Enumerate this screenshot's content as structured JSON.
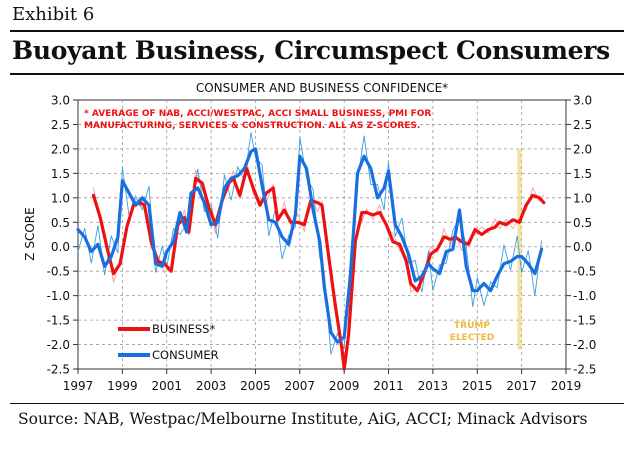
{
  "exhibit_label": "Exhibit 6",
  "headline": "Buoyant Business, Circumspect Consumers",
  "source": "Source: NAB, Westpac/Melbourne Institute, AiG, ACCI; Minack Advisors",
  "chart_data": {
    "type": "line",
    "title": "CONSUMER AND BUSINESS CONFIDENCE*",
    "note_lines": [
      "* AVERAGE OF NAB, ACCI/WESTPAC, ACCI SMALL BUSINESS, PMI FOR",
      "MANUFACTURING, SERVICES & CONSTRUCTION.  ALL AS Z-SCORES."
    ],
    "ylabel": "Z SCORE",
    "xlabel": "",
    "ylim": [
      -2.5,
      3.0
    ],
    "xlim": [
      1997,
      2019
    ],
    "y_ticks": [
      "3.0",
      "2.5",
      "2.0",
      "1.5",
      "1.0",
      "0.5",
      "0.0",
      "-0.5",
      "-1.0",
      "-1.5",
      "-2.0",
      "-2.5"
    ],
    "x_ticks": [
      "1997",
      "1999",
      "2001",
      "2003",
      "2005",
      "2007",
      "2009",
      "2011",
      "2013",
      "2015",
      "2017",
      "2019"
    ],
    "grid": true,
    "colors": {
      "business": "#ee1111",
      "business_raw": "#f4a0a0",
      "consumer": "#1a6fe0",
      "consumer_raw": "#3aa0e0",
      "annotation_band": "#f6dd8a",
      "annotation_text": "#f0b93a"
    },
    "series": [
      {
        "name": "BUSINESS*",
        "x": [
          1997.7,
          1998.0,
          1998.3,
          1998.6,
          1998.9,
          1999.2,
          1999.5,
          1999.8,
          2000.0,
          2000.3,
          2000.6,
          2000.9,
          2001.2,
          2001.5,
          2001.8,
          2002.0,
          2002.3,
          2002.6,
          2002.9,
          2003.2,
          2003.5,
          2003.8,
          2004.0,
          2004.3,
          2004.6,
          2004.9,
          2005.2,
          2005.5,
          2005.8,
          2006.0,
          2006.3,
          2006.6,
          2006.9,
          2007.2,
          2007.5,
          2007.8,
          2008.0,
          2008.3,
          2008.6,
          2008.9,
          2009.0,
          2009.2,
          2009.5,
          2009.8,
          2010.0,
          2010.3,
          2010.6,
          2010.9,
          2011.2,
          2011.5,
          2011.8,
          2012.0,
          2012.3,
          2012.6,
          2012.9,
          2013.2,
          2013.5,
          2013.8,
          2014.0,
          2014.3,
          2014.6,
          2014.9,
          2015.2,
          2015.5,
          2015.8,
          2016.0,
          2016.3,
          2016.6,
          2016.9,
          2017.2,
          2017.5,
          2017.8,
          2018.0
        ],
        "values": [
          1.05,
          0.6,
          0.0,
          -0.55,
          -0.35,
          0.4,
          0.85,
          0.9,
          0.85,
          0.1,
          -0.3,
          -0.35,
          -0.5,
          0.45,
          0.6,
          0.3,
          1.4,
          1.3,
          0.8,
          0.45,
          0.95,
          1.3,
          1.4,
          1.05,
          1.6,
          1.2,
          0.85,
          1.1,
          1.2,
          0.55,
          0.75,
          0.5,
          0.5,
          0.45,
          0.95,
          0.9,
          0.85,
          -0.2,
          -1.2,
          -2.1,
          -2.5,
          -1.8,
          0.1,
          0.7,
          0.7,
          0.65,
          0.7,
          0.45,
          0.1,
          0.05,
          -0.3,
          -0.75,
          -0.9,
          -0.55,
          -0.15,
          -0.05,
          0.2,
          0.15,
          0.2,
          0.1,
          0.05,
          0.35,
          0.25,
          0.35,
          0.4,
          0.5,
          0.45,
          0.55,
          0.5,
          0.85,
          1.05,
          1.0,
          0.9
        ]
      },
      {
        "name": "CONSUMER",
        "x": [
          1997.0,
          1997.3,
          1997.6,
          1997.9,
          1998.2,
          1998.5,
          1998.8,
          1999.0,
          1999.3,
          1999.6,
          1999.9,
          2000.2,
          2000.5,
          2000.8,
          2001.0,
          2001.3,
          2001.6,
          2001.9,
          2002.1,
          2002.4,
          2002.7,
          2003.0,
          2003.3,
          2003.6,
          2003.9,
          2004.2,
          2004.5,
          2004.8,
          2005.0,
          2005.3,
          2005.6,
          2005.9,
          2006.2,
          2006.5,
          2006.8,
          2007.0,
          2007.3,
          2007.6,
          2007.9,
          2008.1,
          2008.4,
          2008.7,
          2009.0,
          2009.3,
          2009.6,
          2009.9,
          2010.2,
          2010.5,
          2010.8,
          2011.0,
          2011.3,
          2011.6,
          2011.9,
          2012.2,
          2012.5,
          2012.8,
          2013.0,
          2013.3,
          2013.6,
          2013.9,
          2014.2,
          2014.5,
          2014.8,
          2015.0,
          2015.3,
          2015.6,
          2015.9,
          2016.2,
          2016.5,
          2016.8,
          2017.0,
          2017.3,
          2017.6,
          2017.9
        ],
        "values": [
          0.35,
          0.2,
          -0.1,
          0.05,
          -0.4,
          -0.2,
          0.2,
          1.35,
          1.1,
          0.85,
          1.0,
          0.85,
          -0.35,
          -0.4,
          -0.1,
          0.1,
          0.7,
          0.3,
          1.1,
          1.2,
          0.9,
          0.45,
          0.5,
          1.2,
          1.4,
          1.45,
          1.6,
          1.95,
          2.0,
          1.25,
          0.55,
          0.5,
          0.2,
          0.05,
          0.65,
          1.85,
          1.6,
          0.75,
          0.1,
          -0.8,
          -1.75,
          -1.95,
          -1.85,
          -0.5,
          1.5,
          1.85,
          1.6,
          1.0,
          1.2,
          1.55,
          0.45,
          0.2,
          -0.15,
          -0.7,
          -0.6,
          -0.35,
          -0.45,
          -0.55,
          -0.1,
          -0.05,
          0.75,
          -0.4,
          -0.9,
          -0.9,
          -0.75,
          -0.9,
          -0.6,
          -0.35,
          -0.3,
          -0.2,
          -0.2,
          -0.35,
          -0.55,
          -0.05
        ]
      }
    ],
    "legend": {
      "placement": "bottom-left",
      "items": [
        "BUSINESS*",
        "CONSUMER"
      ]
    },
    "annotation": {
      "label_lines": [
        "TRUMP",
        "ELECTED"
      ],
      "x": 2016.9
    }
  }
}
